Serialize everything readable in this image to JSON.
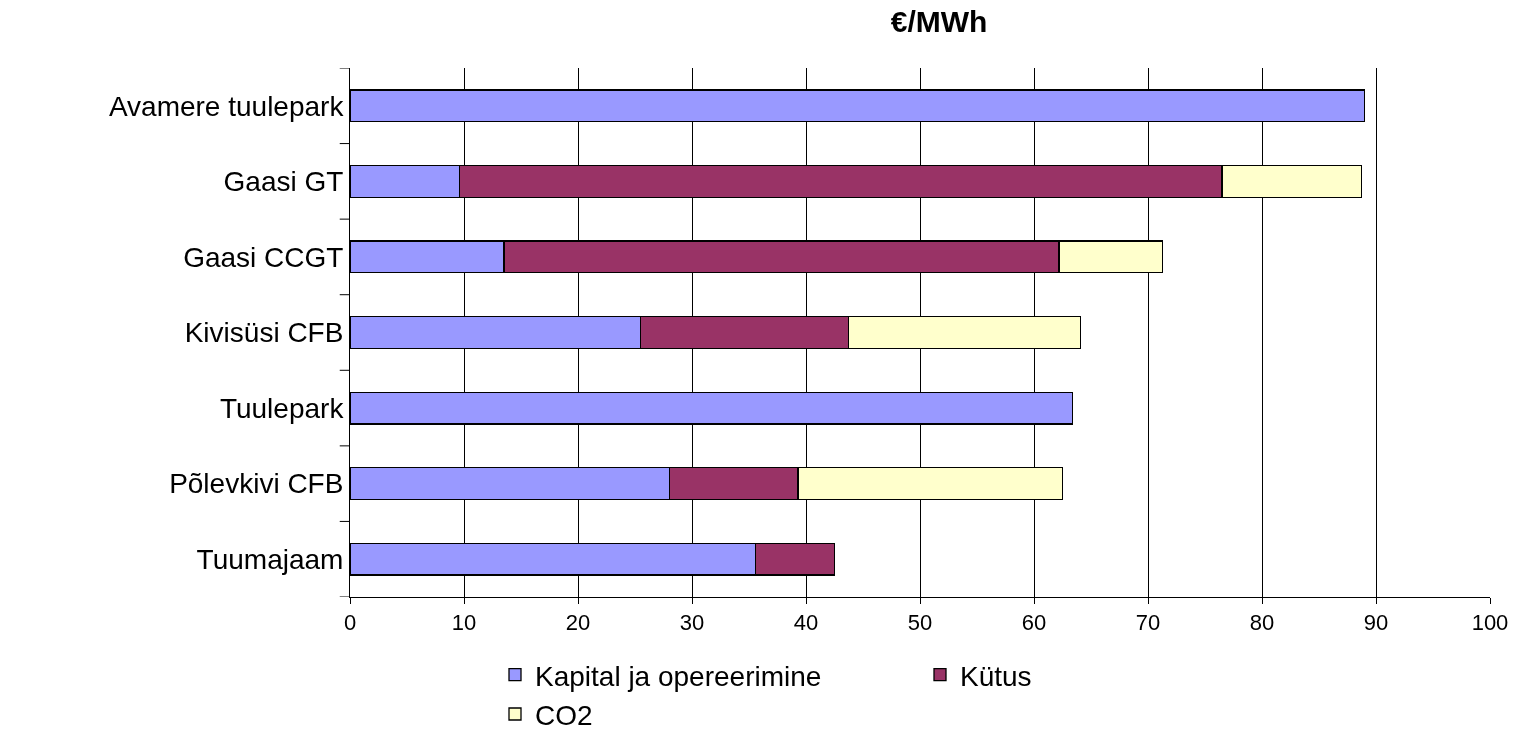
{
  "chart_data": {
    "type": "bar",
    "title": "€/MWh",
    "orientation": "horizontal",
    "stacked": true,
    "categories": [
      "Avamere tuulepark",
      "Gaasi GT",
      "Gaasi CCGT",
      "Kivisüsi CFB",
      "Tuulepark",
      "Põlevkivi CFB",
      "Tuumajaam"
    ],
    "series": [
      {
        "name": "Kapital ja opereerimine",
        "color": "#9999ff",
        "values": [
          89.0,
          9.6,
          13.5,
          25.5,
          63.4,
          28.0,
          35.6
        ]
      },
      {
        "name": "Kütus",
        "color": "#993366",
        "values": [
          null,
          66.9,
          48.7,
          18.2,
          null,
          11.3,
          6.9
        ]
      },
      {
        "name": "CO2",
        "color": "#ffffcc",
        "values": [
          null,
          12.2,
          9.1,
          20.4,
          null,
          23.2,
          null
        ]
      }
    ],
    "xlim": [
      0,
      100
    ],
    "xticks": [
      0,
      10,
      20,
      30,
      40,
      50,
      60,
      70,
      80,
      90,
      100
    ],
    "grid": "x",
    "legend": "bottom"
  }
}
